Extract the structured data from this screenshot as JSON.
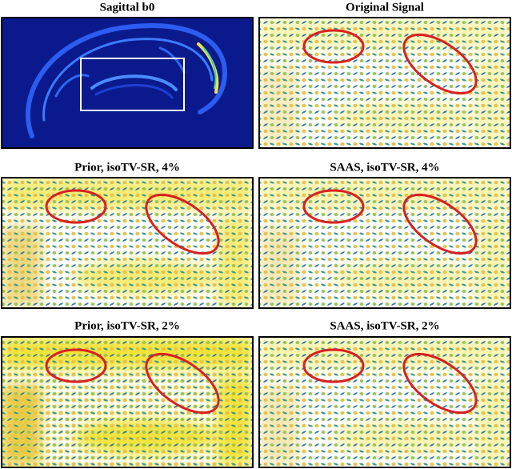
{
  "panels": [
    {
      "title": "Sagittal b0"
    },
    {
      "title": "Original Signal"
    },
    {
      "title": "Prior, isoTV-SR, 4%"
    },
    {
      "title": "SAAS, isoTV-SR, 4%"
    },
    {
      "title": "Prior, isoTV-SR, 2%"
    },
    {
      "title": "SAAS, isoTV-SR, 2%"
    }
  ]
}
